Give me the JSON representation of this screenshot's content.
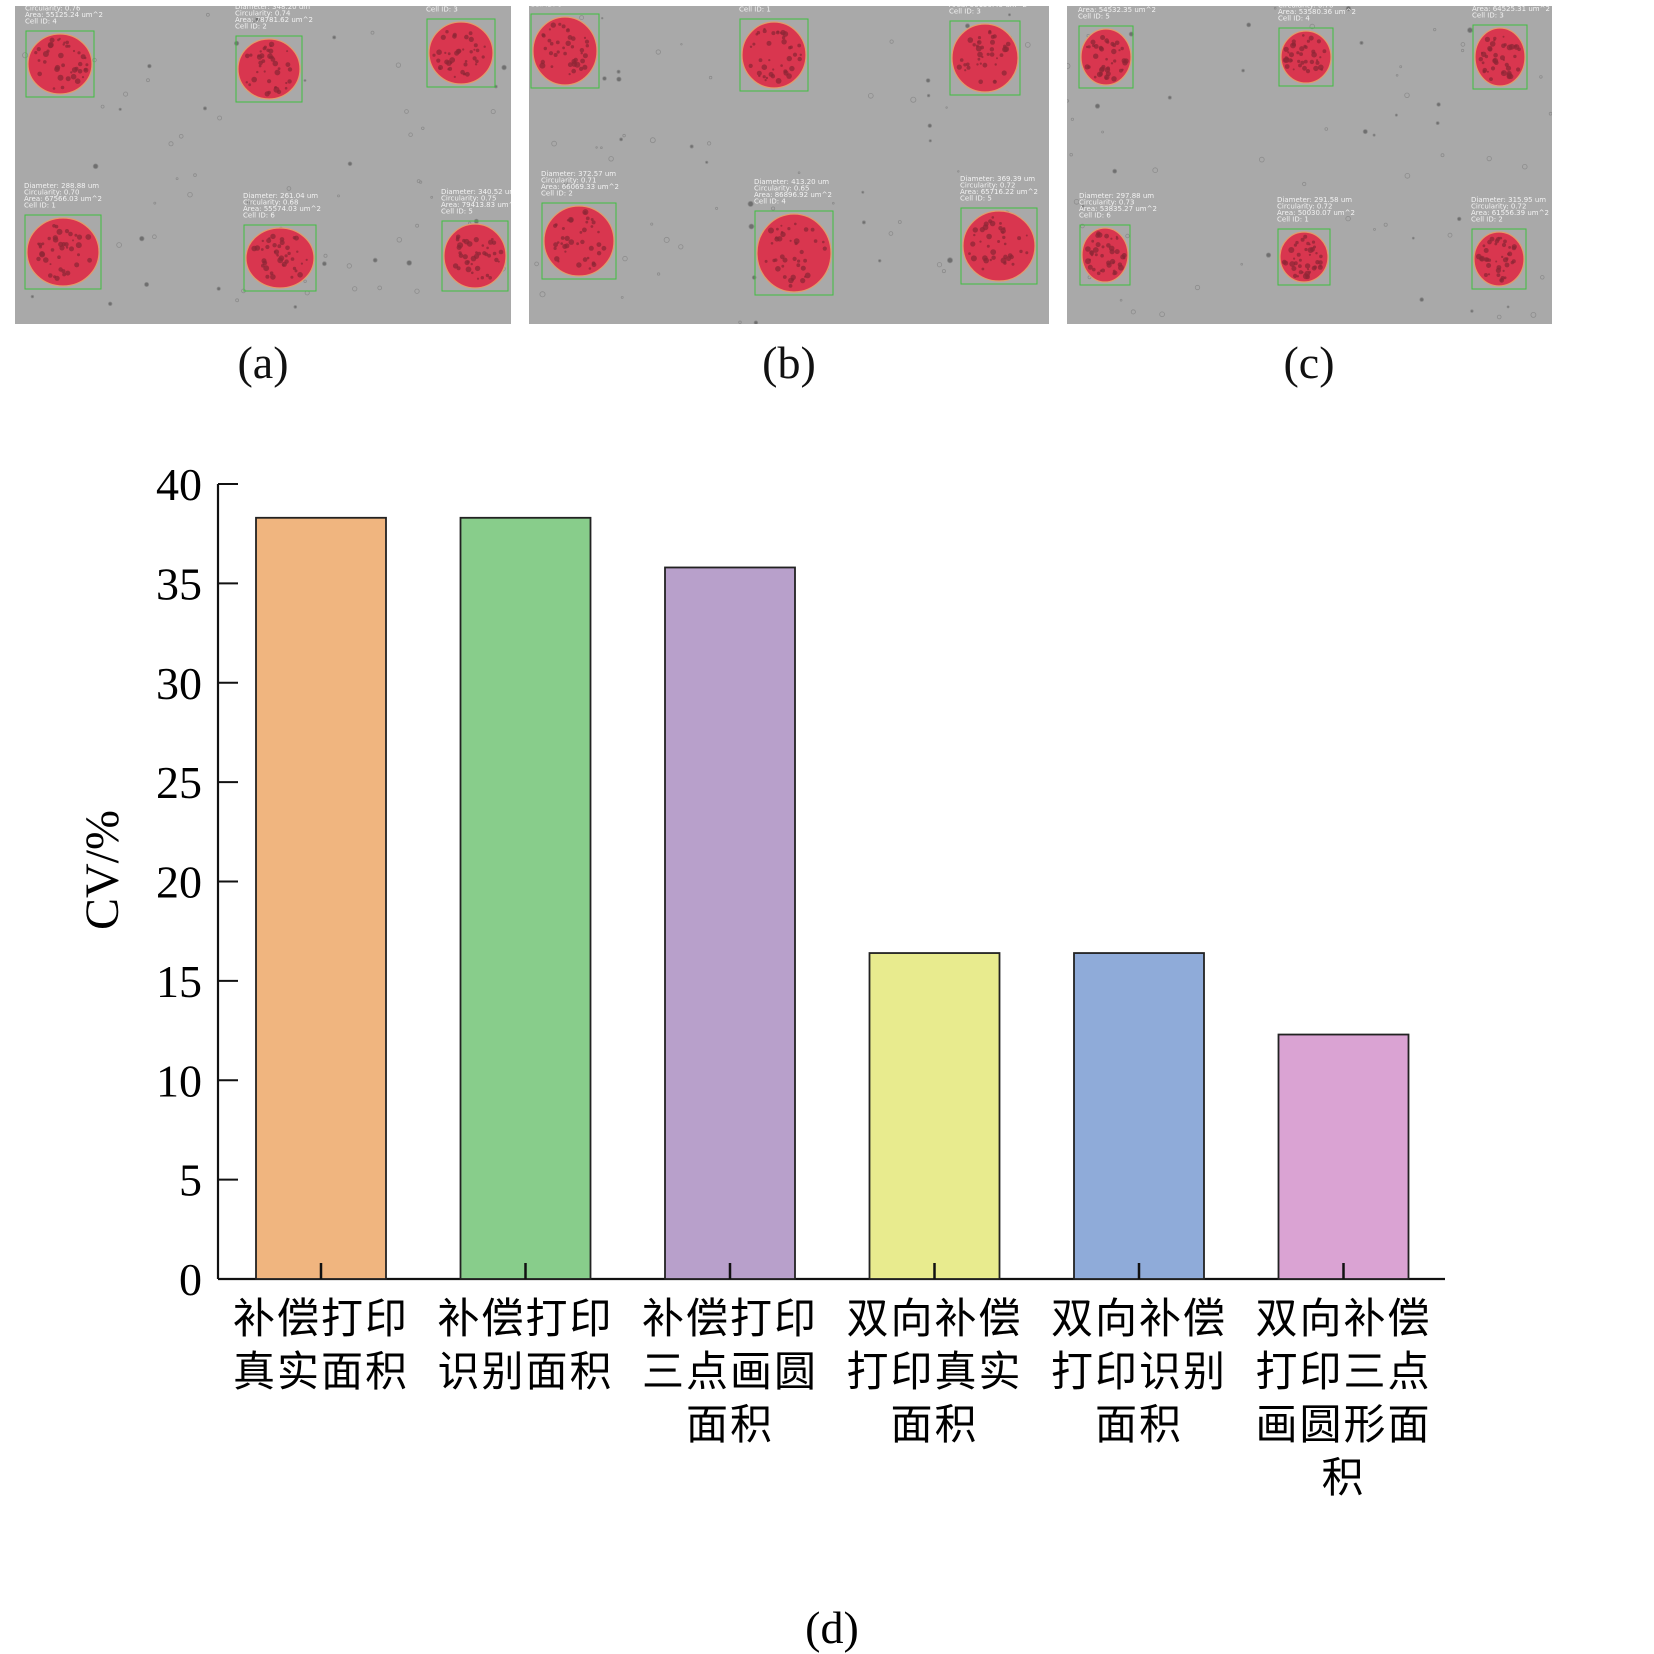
{
  "panels": [
    {
      "caption": "(a)",
      "cells": [
        {
          "lines": [
            "Diameter: 264.73 um",
            "Circularity: 0.76",
            "Area: 55125.24 um^2",
            "Cell ID: 4"
          ]
        },
        {
          "lines": [
            "Diameter: 348.20 um",
            "Circularity: 0.74",
            "Area: 78781.62 um^2",
            "Cell ID: 2"
          ]
        },
        {
          "lines": [
            "Diameter: 355.15 um",
            "Circularity: 0.74",
            "Area: 53042.01 um^2",
            "Cell ID: 3"
          ]
        },
        {
          "lines": [
            "Diameter: 288.88 um",
            "Circularity: 0.70",
            "Area: 67566.03 um^2",
            "Cell ID: 1"
          ]
        },
        {
          "lines": [
            "Diameter: 261.04 um",
            "Circularity: 0.68",
            "Area: 55574.03 um^2",
            "Cell ID: 6"
          ]
        },
        {
          "lines": [
            "Diameter: 340.52 um",
            "Circularity: 0.75",
            "Area: 79413.83 um^2",
            "Cell ID: 5"
          ]
        }
      ]
    },
    {
      "caption": "(b)",
      "cells": [
        {
          "lines": [
            "Diameter: 357.32 um",
            "Circularity: 0.73",
            "Area: 60830.75 um^2",
            "Cell ID: 6"
          ]
        },
        {
          "lines": [
            "Diameter: 359.96 um",
            "Circularity: 0.72",
            "Area: 60294.52 um^2",
            "Cell ID: 1"
          ]
        },
        {
          "lines": [
            "Diameter: 376.07 um",
            "Circularity: 0.70",
            "Area: 56150.45 um^2",
            "Cell ID: 3"
          ]
        },
        {
          "lines": [
            "Diameter: 372.57 um",
            "Circularity: 0.71",
            "Area: 66069.33 um^2",
            "Cell ID: 2"
          ]
        },
        {
          "lines": [
            "Diameter: 413.20 um",
            "Circularity: 0.65",
            "Area: 86896.92 um^2",
            "Cell ID: 4"
          ]
        },
        {
          "lines": [
            "Diameter: 369.39 um",
            "Circularity: 0.72",
            "Area: 65716.22 um^2",
            "Cell ID: 5"
          ]
        }
      ]
    },
    {
      "caption": "(c)",
      "cells": [
        {
          "lines": [
            "Diameter: 307.93 um",
            "Circularity: 0.74",
            "Area: 54532.35 um^2",
            "Cell ID: 5"
          ]
        },
        {
          "lines": [
            "Diameter: 309.69 um",
            "Circularity: 0.76",
            "Area: 53580.36 um^2",
            "Cell ID: 4"
          ]
        },
        {
          "lines": [
            "Diameter: 319.28 um",
            "Circularity: 0.74",
            "Area: 64525.31 um^2",
            "Cell ID: 3"
          ]
        },
        {
          "lines": [
            "Diameter: 297.88 um",
            "Circularity: 0.73",
            "Area: 53835.27 um^2",
            "Cell ID: 6"
          ]
        },
        {
          "lines": [
            "Diameter: 291.58 um",
            "Circularity: 0.72",
            "Area: 50030.07 um^2",
            "Cell ID: 1"
          ]
        },
        {
          "lines": [
            "Diameter: 315.95 um",
            "Circularity: 0.72",
            "Area: 61556.39 um^2",
            "Cell ID: 2"
          ]
        }
      ]
    }
  ],
  "chart_caption": "(d)",
  "chart_data": {
    "type": "bar",
    "ylabel": "CV/%",
    "xlabel": "",
    "ylim": [
      0,
      40
    ],
    "yticks": [
      0,
      5,
      10,
      15,
      20,
      25,
      30,
      35,
      40
    ],
    "grid": false,
    "categories": [
      [
        "补偿打印",
        "真实面积"
      ],
      [
        "补偿打印",
        "识别面积"
      ],
      [
        "补偿打印",
        "三点画圆",
        "面积"
      ],
      [
        "双向补偿",
        "打印真实",
        "面积"
      ],
      [
        "双向补偿",
        "打印识别",
        "面积"
      ],
      [
        "双向补偿",
        "打印三点",
        "画圆形面",
        "积"
      ]
    ],
    "values": [
      38.3,
      38.3,
      35.8,
      16.4,
      16.4,
      12.3
    ],
    "colors": [
      "#F0B57F",
      "#88CD8B",
      "#B8A0CB",
      "#E8EB8E",
      "#8FABD9",
      "#DAA3D3"
    ]
  }
}
